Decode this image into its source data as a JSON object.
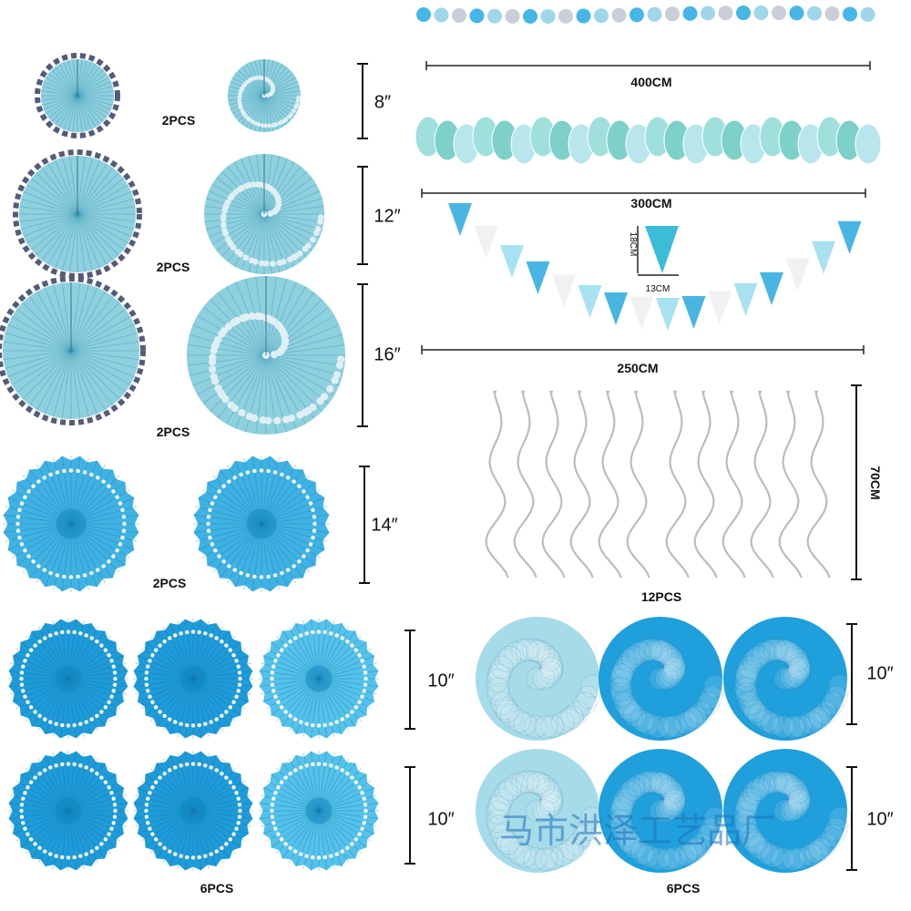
{
  "paper_fans": [
    {
      "size": "8″",
      "count": "2PCS"
    },
    {
      "size": "12″",
      "count": "2PCS"
    },
    {
      "size": "16″",
      "count": "2PCS"
    },
    {
      "size": "14″",
      "count": "2PCS"
    }
  ],
  "garlands": [
    {
      "length": "400CM"
    },
    {
      "length": "300CM"
    },
    {
      "length": "250CM",
      "flag_height": "18CM",
      "flag_width": "13CM"
    }
  ],
  "swirls": {
    "length": "70CM",
    "count": "12PCS"
  },
  "small_fans": {
    "sizes": [
      "10″",
      "10″"
    ],
    "count": "6PCS"
  },
  "pompoms": {
    "sizes": [
      "10″",
      "10″"
    ],
    "count": "6PCS"
  },
  "watermark": "马市洪泽工艺品厂"
}
